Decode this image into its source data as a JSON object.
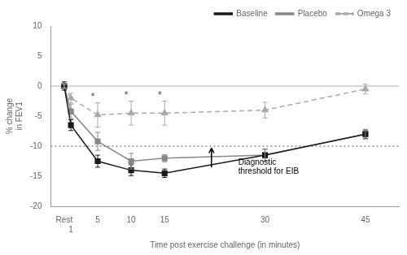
{
  "chart_data": {
    "type": "line",
    "x": [
      0,
      1,
      5,
      10,
      15,
      30,
      45
    ],
    "xlim": [
      -2,
      50
    ],
    "xticks": [
      {
        "value": 0,
        "label": "Rest"
      },
      1,
      5,
      10,
      15,
      30,
      45
    ],
    "ylim": [
      -20,
      10
    ],
    "yticks": [
      -20,
      -15,
      -10,
      -5,
      0,
      5,
      10
    ],
    "x_label": "Time post exercise challenge (in minutes)",
    "y_label": "% change\nin FEV1",
    "grid": false,
    "legend": "upper right",
    "series": [
      {
        "name": "Baseline",
        "color": "#1a1a1a",
        "marker": "square",
        "line_style": "solid",
        "values": [
          0,
          -6.5,
          -12.5,
          -14.0,
          -14.5,
          -11.5,
          -8.0
        ],
        "errors": [
          0.7,
          0.9,
          1.0,
          0.9,
          0.7,
          1.0,
          0.7
        ]
      },
      {
        "name": "Placebo",
        "color": "#888888",
        "marker": "square",
        "line_style": "solid",
        "values": [
          0,
          -4.2,
          -9.2,
          -12.5,
          -12.0,
          -11.5,
          -8.0
        ],
        "errors": [
          0.4,
          1.2,
          1.5,
          1.3,
          0.6,
          1.0,
          0.8
        ]
      },
      {
        "name": "Omega 3",
        "color": "#aaaaaa",
        "marker": "triangle",
        "line_style": "dashed",
        "values": [
          0,
          -2.0,
          -4.8,
          -4.5,
          -4.5,
          -4.0,
          -0.5
        ],
        "errors": [
          0.3,
          0.8,
          2.0,
          2.0,
          2.0,
          1.3,
          0.8
        ],
        "point_labels": [
          null,
          null,
          "*",
          "*",
          "*",
          null,
          null
        ]
      }
    ],
    "reference_lines": [
      {
        "y": -10,
        "line_style": "dotted"
      },
      {
        "y": 0,
        "line_style": "solid"
      }
    ],
    "annotations": [
      {
        "text": "Diagnostic\nthreshold for EIB",
        "x": 26,
        "y": -13.5,
        "arrow_from": [
          22,
          -13.5
        ],
        "arrow_to": [
          22,
          -10.3
        ]
      }
    ]
  }
}
